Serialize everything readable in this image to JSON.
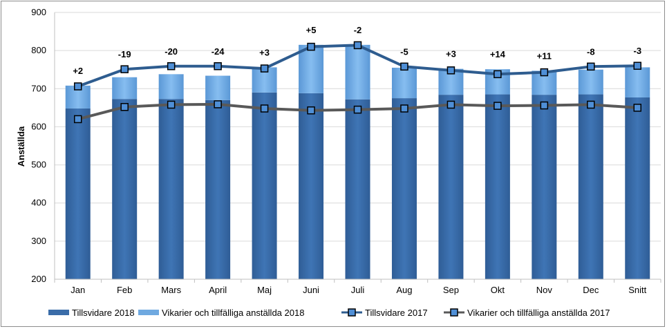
{
  "chart_data": {
    "type": "bar",
    "ylabel": "Anställda",
    "ylim": [
      200,
      900
    ],
    "yticks": [
      200,
      300,
      400,
      500,
      600,
      700,
      800,
      900
    ],
    "grid": true,
    "legend_position": "bottom",
    "categories": [
      "Jan",
      "Feb",
      "Mars",
      "April",
      "Maj",
      "Juni",
      "Juli",
      "Aug",
      "Sep",
      "Okt",
      "Nov",
      "Dec",
      "Snitt"
    ],
    "series": [
      {
        "name": "Tillsvidare 2018",
        "kind": "bar-stack-base",
        "color": "#3A6CA8",
        "values": [
          648,
          673,
          673,
          670,
          690,
          688,
          672,
          675,
          684,
          685,
          684,
          685,
          677
        ]
      },
      {
        "name": "Vikarier och tillfälliga anställda 2018",
        "kind": "bar-stack-top",
        "color": "#6FA9E0",
        "values": [
          60,
          57,
          65,
          64,
          66,
          127,
          143,
          80,
          68,
          66,
          63,
          65,
          79
        ]
      },
      {
        "name": "Tillsvidare 2017",
        "kind": "line",
        "color": "#2E5C8F",
        "values": [
          706,
          751,
          759,
          759,
          753,
          810,
          814,
          758,
          748,
          738,
          743,
          758,
          760
        ]
      },
      {
        "name": "Vikarier och tillfälliga anställda 2017",
        "kind": "line",
        "color": "#595959",
        "values": [
          620,
          652,
          658,
          659,
          648,
          643,
          645,
          648,
          658,
          655,
          656,
          658,
          650
        ]
      }
    ],
    "data_labels": [
      "+2",
      "-19",
      "-20",
      "-24",
      "+3",
      "+5",
      "-2",
      "-5",
      "+3",
      "+14",
      "+11",
      "-8",
      "-3"
    ]
  }
}
